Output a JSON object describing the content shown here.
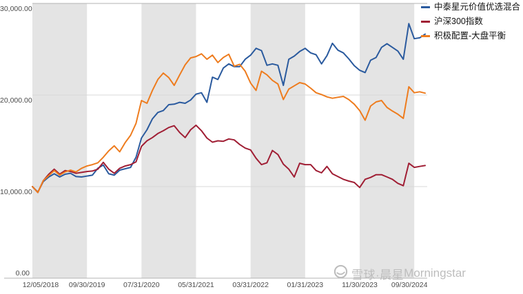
{
  "watermark": {
    "text": "雪球·晨星",
    "brand": "Morningstar"
  },
  "axis": {
    "y_tick_labels": [
      "0.00",
      "10,000.00",
      "20,000.00",
      "30,000.00"
    ],
    "x_tick_labels": [
      "12/05/2018",
      "09/30/2019",
      "07/31/2020",
      "05/31/2021",
      "03/31/2022",
      "01/31/2023",
      "11/30/2023",
      "09/30/2024"
    ]
  },
  "chart_data": {
    "type": "line",
    "title": "",
    "xlabel": "",
    "ylabel": "",
    "ylim": [
      0,
      30000
    ],
    "y_ticks": [
      0,
      10000,
      20000,
      30000
    ],
    "y_tick_labels": [
      "0.00",
      "10,000.00",
      "20,000.00",
      "30,000.00"
    ],
    "x_months": 72,
    "x_start_label": "12/05/2018",
    "tick_month_indices": [
      0,
      10,
      20,
      30,
      40,
      50,
      60,
      70
    ],
    "x_tick_labels": [
      "12/05/2018",
      "09/30/2019",
      "07/31/2020",
      "05/31/2021",
      "03/31/2022",
      "01/31/2023",
      "11/30/2023",
      "09/30/2024"
    ],
    "bands_month_ranges": [
      [
        0,
        10
      ],
      [
        20,
        30
      ],
      [
        40,
        50
      ],
      [
        60,
        70
      ]
    ],
    "band_color": "#e4e4e4",
    "grid": true,
    "legend_position": "top-right",
    "series": [
      {
        "name": "中泰星元价值优选混合",
        "color": "#2a5a9e",
        "values": [
          10000,
          9400,
          10550,
          11050,
          11400,
          11050,
          11350,
          11450,
          11100,
          11050,
          11150,
          11250,
          12000,
          12350,
          11400,
          11250,
          11800,
          11950,
          12100,
          13200,
          15300,
          16200,
          17400,
          18100,
          18300,
          18950,
          19000,
          19200,
          19100,
          19450,
          20100,
          20250,
          19200,
          21950,
          21700,
          22950,
          23400,
          23100,
          23100,
          23900,
          24350,
          25100,
          24850,
          23250,
          23400,
          23250,
          21050,
          23900,
          24250,
          24750,
          25100,
          24600,
          24400,
          23400,
          24300,
          25650,
          24900,
          24600,
          23950,
          23200,
          22700,
          22450,
          23800,
          24100,
          25200,
          25600,
          25200,
          24800,
          23900,
          27800,
          26150,
          26250,
          26650
        ]
      },
      {
        "name": "沪深300指数",
        "color": "#a01e34",
        "values": [
          10000,
          9350,
          10650,
          11350,
          11900,
          11350,
          11750,
          11650,
          11450,
          11550,
          11650,
          11700,
          11900,
          12650,
          11900,
          11450,
          12000,
          12250,
          12400,
          12700,
          14400,
          15000,
          15350,
          15800,
          16100,
          16450,
          16650,
          15900,
          15350,
          16200,
          16700,
          16100,
          15300,
          14850,
          15000,
          14950,
          15200,
          15100,
          14600,
          14200,
          14000,
          13100,
          12400,
          12600,
          13950,
          13500,
          12450,
          11900,
          11050,
          12550,
          12400,
          12400,
          11750,
          11500,
          12200,
          11400,
          11100,
          10800,
          10600,
          10450,
          9900,
          10800,
          11000,
          11300,
          11300,
          11050,
          10800,
          10350,
          10100,
          12550,
          12100,
          12200,
          12300
        ]
      },
      {
        "name": "积极配置-大盘平衡",
        "color": "#ee7c1e",
        "values": [
          10000,
          9350,
          10650,
          11200,
          11750,
          11250,
          11600,
          11800,
          11600,
          12000,
          12250,
          12400,
          12600,
          13200,
          13900,
          14450,
          13800,
          14800,
          15600,
          16900,
          19400,
          19100,
          20500,
          21700,
          22400,
          21900,
          21050,
          22200,
          23300,
          24050,
          24200,
          24500,
          23900,
          24350,
          23550,
          24100,
          24450,
          23150,
          23350,
          22600,
          21300,
          20500,
          22600,
          22200,
          21600,
          21200,
          19500,
          20650,
          21000,
          21350,
          21200,
          20750,
          20250,
          20050,
          19800,
          19650,
          19750,
          19850,
          19500,
          19000,
          18300,
          17250,
          18800,
          19250,
          19400,
          18650,
          18250,
          17900,
          17450,
          20900,
          20250,
          20350,
          20200
        ]
      }
    ]
  }
}
